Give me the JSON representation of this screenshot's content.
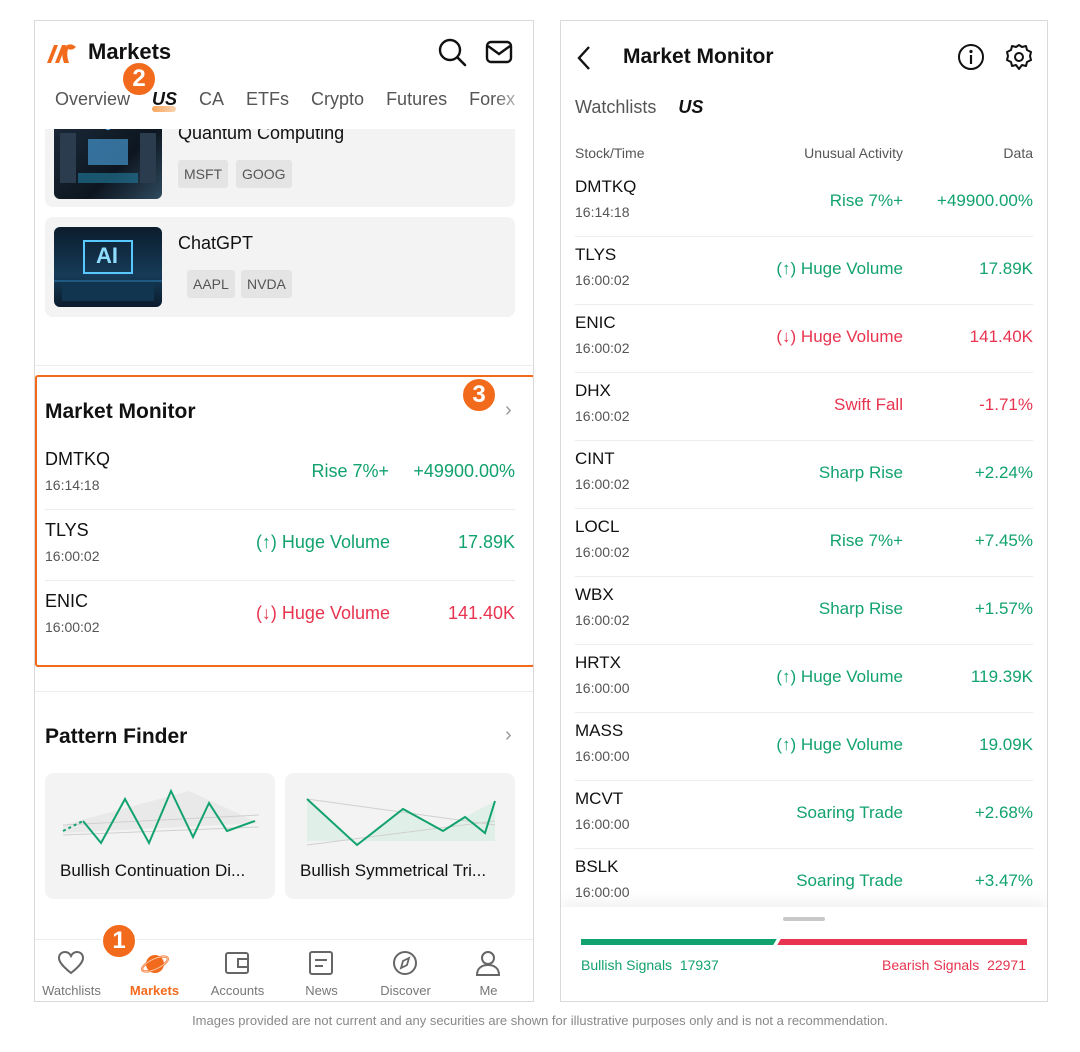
{
  "left": {
    "header": {
      "title": "Markets"
    },
    "tabs": [
      "Overview",
      "US",
      "CA",
      "ETFs",
      "Crypto",
      "Futures",
      "Forex"
    ],
    "active_tab": "US",
    "badges": [
      "1",
      "2",
      "3"
    ],
    "theme_cards": [
      {
        "title": "Quantum Computing",
        "tickers": [
          "MSFT",
          "GOOG"
        ]
      },
      {
        "title": "ChatGPT",
        "tickers": [
          "AAPL",
          "NVDA"
        ],
        "image_text": "AI"
      }
    ],
    "market_monitor": {
      "title": "Market Monitor",
      "rows": [
        {
          "symbol": "DMTKQ",
          "time": "16:14:18",
          "activity": "Rise 7%+",
          "value": "+49900.00%",
          "tone": "green"
        },
        {
          "symbol": "TLYS",
          "time": "16:00:02",
          "activity": "(↑) Huge Volume",
          "value": "17.89K",
          "tone": "green"
        },
        {
          "symbol": "ENIC",
          "time": "16:00:02",
          "activity": "(↓) Huge Volume",
          "value": "141.40K",
          "tone": "red"
        }
      ]
    },
    "pattern_finder": {
      "title": "Pattern Finder",
      "cards": [
        "Bullish Continuation Di...",
        "Bullish Symmetrical Tri..."
      ]
    },
    "bottom_nav": [
      {
        "label": "Watchlists",
        "icon": "heart-icon"
      },
      {
        "label": "Markets",
        "icon": "planet-icon",
        "active": true
      },
      {
        "label": "Accounts",
        "icon": "wallet-icon"
      },
      {
        "label": "News",
        "icon": "news-icon"
      },
      {
        "label": "Discover",
        "icon": "compass-icon"
      },
      {
        "label": "Me",
        "icon": "person-icon"
      }
    ]
  },
  "right": {
    "header": {
      "title": "Market Monitor"
    },
    "tabs": [
      "Watchlists",
      "US"
    ],
    "active_tab": "US",
    "columns": [
      "Stock/Time",
      "Unusual Activity",
      "Data"
    ],
    "rows": [
      {
        "symbol": "DMTKQ",
        "time": "16:14:18",
        "activity": "Rise 7%+",
        "value": "+49900.00%",
        "tone": "green"
      },
      {
        "symbol": "TLYS",
        "time": "16:00:02",
        "activity": "(↑) Huge Volume",
        "value": "17.89K",
        "tone": "green"
      },
      {
        "symbol": "ENIC",
        "time": "16:00:02",
        "activity": "(↓) Huge Volume",
        "value": "141.40K",
        "tone": "red"
      },
      {
        "symbol": "DHX",
        "time": "16:00:02",
        "activity": "Swift Fall",
        "value": "-1.71%",
        "tone": "red"
      },
      {
        "symbol": "CINT",
        "time": "16:00:02",
        "activity": "Sharp Rise",
        "value": "+2.24%",
        "tone": "green"
      },
      {
        "symbol": "LOCL",
        "time": "16:00:02",
        "activity": "Rise 7%+",
        "value": "+7.45%",
        "tone": "green"
      },
      {
        "symbol": "WBX",
        "time": "16:00:02",
        "activity": "Sharp Rise",
        "value": "+1.57%",
        "tone": "green"
      },
      {
        "symbol": "HRTX",
        "time": "16:00:00",
        "activity": "(↑) Huge Volume",
        "value": "119.39K",
        "tone": "green"
      },
      {
        "symbol": "MASS",
        "time": "16:00:00",
        "activity": "(↑) Huge Volume",
        "value": "19.09K",
        "tone": "green"
      },
      {
        "symbol": "MCVT",
        "time": "16:00:00",
        "activity": "Soaring Trade",
        "value": "+2.68%",
        "tone": "green"
      },
      {
        "symbol": "BSLK",
        "time": "16:00:00",
        "activity": "Soaring Trade",
        "value": "+3.47%",
        "tone": "green"
      }
    ],
    "signals": {
      "bullish_label": "Bullish Signals",
      "bullish_count": "17937",
      "bearish_label": "Bearish Signals",
      "bearish_count": "22971"
    }
  },
  "colors": {
    "accent": "#f26b1d",
    "green": "#12a26e",
    "red": "#e8344f"
  },
  "disclaimer": "Images provided are not current and any securities are shown for illustrative purposes only and is not a recommendation."
}
